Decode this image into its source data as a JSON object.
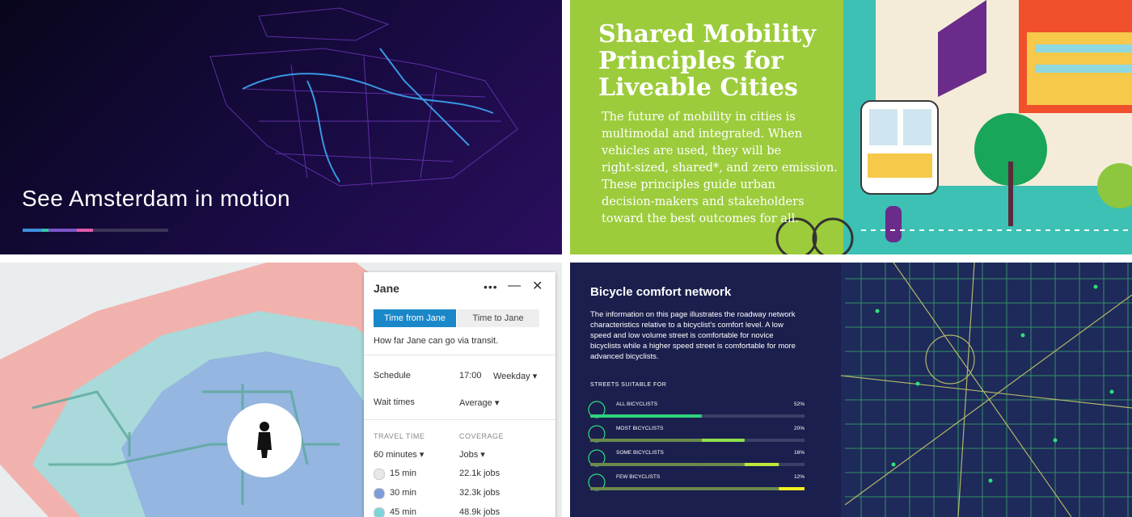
{
  "amsterdam": {
    "title_parts": [
      "See",
      "Amsterdam",
      "in motion"
    ]
  },
  "mobility": {
    "title_lines": [
      "Shared Mobility",
      "Principles for",
      "Liveable Cities"
    ],
    "body_lines": [
      "The future of mobility in cities is",
      "multimodal and integrated. When",
      "vehicles are used, they will be",
      "right-sized, shared*, and zero emission.",
      "These principles guide urban",
      "decision-makers and stakeholders",
      "toward the best outcomes for all."
    ]
  },
  "transit_panel": {
    "name": "Jane",
    "tabs": [
      "Time from Jane",
      "Time to Jane"
    ],
    "description": "How far Jane can go via transit.",
    "schedule": {
      "label": "Schedule",
      "time": "17:00",
      "day": "Weekday"
    },
    "wait": {
      "label": "Wait times",
      "value": "Average"
    },
    "columns": [
      "TRAVEL TIME",
      "COVERAGE"
    ],
    "selectors": [
      "60 minutes",
      "Jobs"
    ],
    "rows": [
      {
        "time": "15 min",
        "coverage": "22.1k jobs",
        "color": "#e8e8e8"
      },
      {
        "time": "30 min",
        "coverage": "32.3k jobs",
        "color": "#7f9bd8"
      },
      {
        "time": "45 min",
        "coverage": "48.9k jobs",
        "color": "#7fd3da"
      }
    ]
  },
  "bicycle": {
    "title": "Bicycle comfort network",
    "body_lines": [
      "The information on this page illustrates the roadway network",
      "characteristics relative to a bicyclist's comfort level. A low",
      "speed and low volume street is comfortable for novice",
      "bicyclists while a higher speed street is comfortable for more",
      "advanced bicyclists."
    ],
    "section_label": "STREETS SUITABLE FOR",
    "items": [
      {
        "name": "ALL BICYCLISTS",
        "value": 52,
        "value_label": "52%",
        "color": "#2ed47c"
      },
      {
        "name": "MOST BICYCLISTS",
        "value": 20,
        "value_label": "20%",
        "color": "#8ee04c"
      },
      {
        "name": "SOME BICYCLISTS",
        "value": 16,
        "value_label": "16%",
        "color": "#bde83c"
      },
      {
        "name": "FEW BICYCLISTS",
        "value": 12,
        "value_label": "12%",
        "color": "#f2f01e"
      }
    ]
  }
}
